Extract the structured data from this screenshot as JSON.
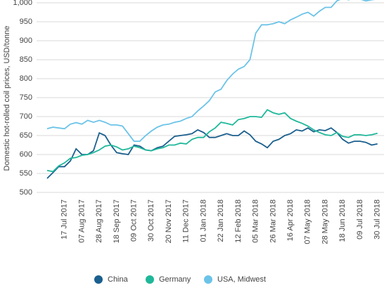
{
  "chart_data": {
    "type": "line",
    "y_label": "Domestic hot-rolled coil prices, USD/tonne",
    "categories": [
      null,
      null,
      null,
      "17 Jul 2017",
      null,
      null,
      "07 Aug 2017",
      null,
      null,
      "28 Aug 2017",
      null,
      null,
      "18 Sep 2017",
      null,
      null,
      "09 Oct 2017",
      null,
      null,
      "30 Oct 2017",
      null,
      null,
      "20 Nov 2017",
      null,
      null,
      "11 Dec 2017",
      null,
      null,
      "01 Jan 2018",
      null,
      null,
      "22 Jan 2018",
      null,
      null,
      "12 Feb 2018",
      null,
      null,
      "05 Mar 2018",
      null,
      null,
      "26 Mar 2018",
      null,
      null,
      "16 Apr 2018",
      null,
      null,
      "07 May 2018",
      null,
      null,
      "28 May 2018",
      null,
      null,
      "18 Jun 2018",
      null,
      null,
      "09 Jul 2018",
      null,
      null,
      "30 Jul 2018"
    ],
    "series": [
      {
        "name": "China",
        "color": "#1a5f8e",
        "values": [
          537,
          552,
          568,
          568,
          583,
          615,
          600,
          600,
          610,
          657,
          650,
          625,
          605,
          602,
          600,
          625,
          622,
          612,
          610,
          618,
          622,
          635,
          648,
          650,
          652,
          655,
          665,
          658,
          645,
          645,
          650,
          655,
          650,
          650,
          662,
          652,
          635,
          628,
          618,
          635,
          640,
          650,
          655,
          665,
          662,
          670,
          660,
          665,
          663,
          670,
          658,
          640,
          630,
          635,
          635,
          632,
          625,
          628
        ]
      },
      {
        "name": "Germany",
        "color": "#1fb89a",
        "values": [
          558,
          555,
          570,
          578,
          590,
          592,
          598,
          600,
          605,
          612,
          622,
          625,
          620,
          612,
          615,
          622,
          618,
          612,
          610,
          615,
          618,
          625,
          625,
          630,
          628,
          640,
          645,
          645,
          660,
          670,
          685,
          682,
          678,
          692,
          695,
          700,
          700,
          698,
          718,
          710,
          706,
          710,
          695,
          688,
          682,
          675,
          665,
          658,
          652,
          650,
          658,
          648,
          645,
          652,
          652,
          650,
          652,
          656
        ]
      },
      {
        "name": "USA, Midwest",
        "color": "#6cc3e8",
        "values": [
          668,
          672,
          670,
          668,
          680,
          684,
          680,
          690,
          685,
          690,
          685,
          678,
          678,
          675,
          655,
          635,
          635,
          650,
          662,
          672,
          678,
          680,
          685,
          688,
          695,
          700,
          715,
          728,
          742,
          765,
          772,
          795,
          812,
          825,
          832,
          850,
          920,
          942,
          942,
          945,
          950,
          945,
          955,
          962,
          970,
          975,
          965,
          978,
          988,
          988,
          1005,
          1012,
          1008,
          1012,
          1010,
          1005,
          1008,
          1010
        ]
      }
    ],
    "ylim": [
      500,
      1000
    ],
    "yticks": [
      500,
      550,
      600,
      650,
      700,
      750,
      800,
      850,
      900,
      950,
      {
        "value": 1000,
        "label": "1,000"
      }
    ],
    "grid": true,
    "legend": "bottom"
  }
}
